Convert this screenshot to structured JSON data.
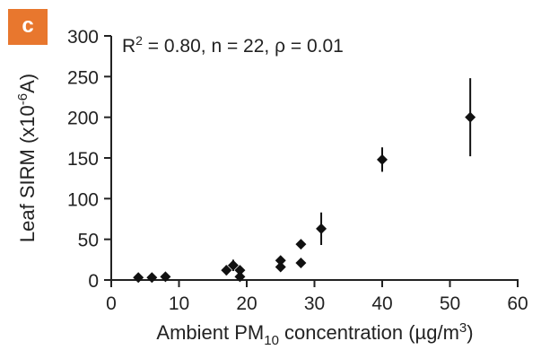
{
  "panel_label": "c",
  "colors": {
    "badge": "#e8772e",
    "marker": "#111111",
    "axis": "#222222"
  },
  "chart_data": {
    "type": "scatter",
    "title": "",
    "annotation": "R² = 0.80, n = 22, ρ = 0.01",
    "annotation_parts": {
      "r": "R",
      "r_sup": "2",
      "rest": " = 0.80, n = 22, ρ = 0.01"
    },
    "xlabel": "Ambient PM₁₀ concentration (µg/m³)",
    "xlabel_parts": {
      "pre": "Ambient PM",
      "sub": "10",
      "mid": " concentration (µg/m",
      "sup": "3",
      "post": ")"
    },
    "ylabel": "Leaf SIRM (x10⁻⁶A)",
    "ylabel_parts": {
      "pre": "Leaf SIRM (x10",
      "sup": "-6",
      "post": "A)"
    },
    "xlim": [
      0,
      60
    ],
    "ylim": [
      0,
      300
    ],
    "xticks": [
      0,
      10,
      20,
      30,
      40,
      50,
      60
    ],
    "yticks": [
      0,
      50,
      100,
      150,
      200,
      250,
      300
    ],
    "grid": false,
    "marker": "diamond",
    "points": [
      {
        "x": 4,
        "y": 3
      },
      {
        "x": 6,
        "y": 3
      },
      {
        "x": 8,
        "y": 4
      },
      {
        "x": 17,
        "y": 12,
        "err": 6
      },
      {
        "x": 18,
        "y": 18,
        "err": 7
      },
      {
        "x": 19,
        "y": 12,
        "err": 5
      },
      {
        "x": 19,
        "y": 4
      },
      {
        "x": 25,
        "y": 16
      },
      {
        "x": 25,
        "y": 24,
        "err": 5
      },
      {
        "x": 28,
        "y": 44,
        "err": 5
      },
      {
        "x": 28,
        "y": 21
      },
      {
        "x": 31,
        "y": 63,
        "err": 20
      },
      {
        "x": 40,
        "y": 148,
        "err": 15
      },
      {
        "x": 53,
        "y": 200,
        "err": 48
      }
    ]
  }
}
